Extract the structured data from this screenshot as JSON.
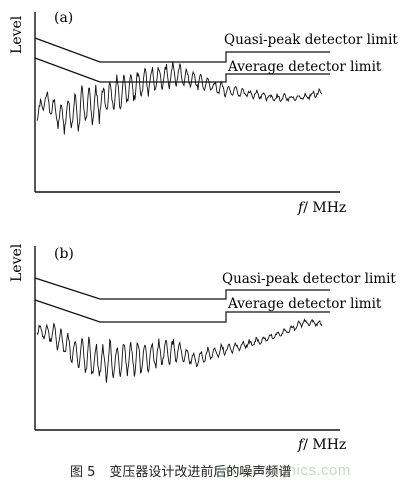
{
  "caption": {
    "number": "图 5",
    "text": "变压器设计改进前后的噪声频谱"
  },
  "watermark": "www.cntronics.com",
  "chart_data": [
    {
      "type": "line",
      "panel_label": "(a)",
      "ylabel": "Level",
      "xlabel_italic": "f",
      "xlabel": "/ MHz",
      "limits": [
        {
          "name": "Quasi-peak detector limit"
        },
        {
          "name": "Average detector limit"
        }
      ],
      "noise": "high"
    },
    {
      "type": "line",
      "panel_label": "(b)",
      "ylabel": "Level",
      "xlabel_italic": "f",
      "xlabel": "/ MHz",
      "limits": [
        {
          "name": "Quasi-peak detector limit"
        },
        {
          "name": "Average detector limit"
        }
      ],
      "noise": "reduced"
    }
  ]
}
